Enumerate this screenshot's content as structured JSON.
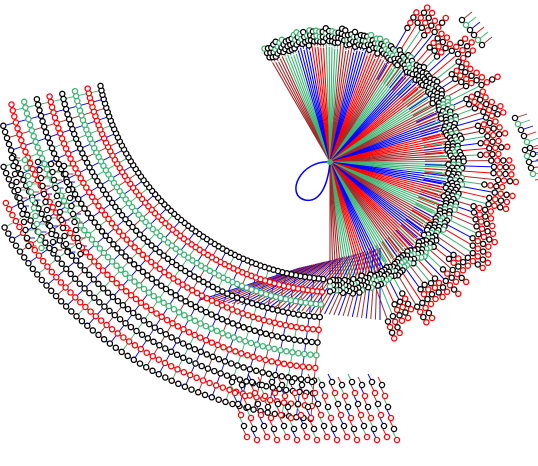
{
  "diagram": {
    "type": "radial-tree",
    "palette": {
      "dark_red": "#a52a2a",
      "red": "#ff0000",
      "blue": "#0000ff",
      "green": "#3cb371",
      "node_outline": "#000000",
      "background": "#ffffff"
    },
    "branch_colors": [
      "dark_red",
      "green",
      "blue",
      "red",
      "green",
      "dark_red",
      "blue",
      "red"
    ],
    "hub_count": 1,
    "ring_count": 12,
    "leaf_marker": "circle"
  }
}
